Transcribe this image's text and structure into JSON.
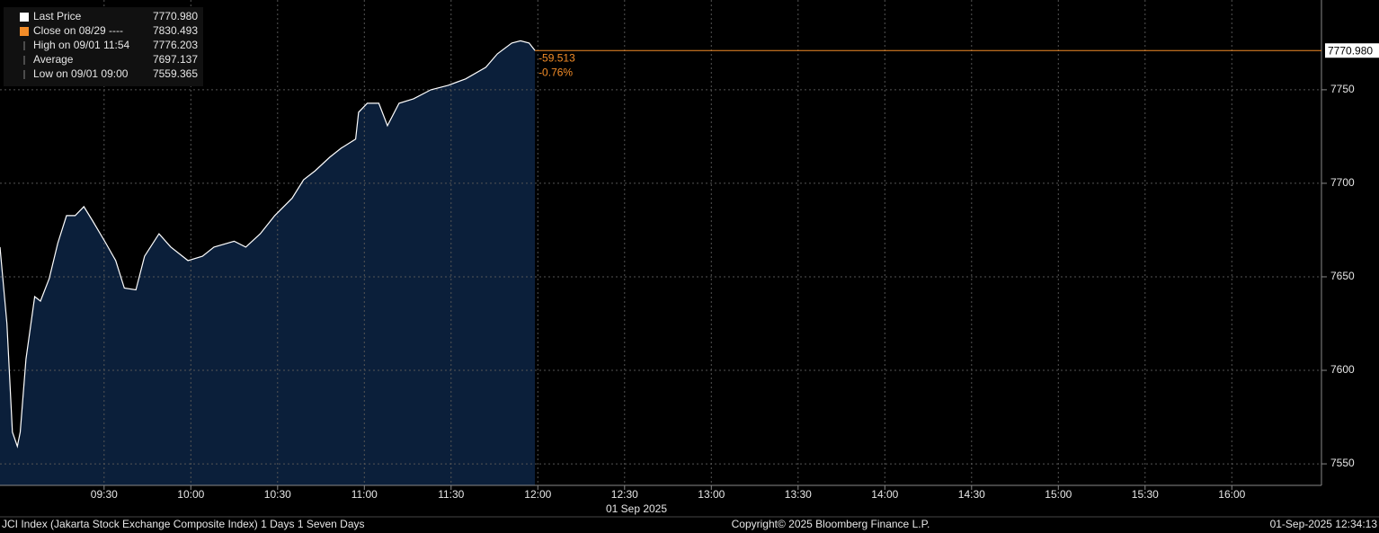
{
  "chart_data": {
    "type": "area",
    "series": [
      {
        "name": "Last Price",
        "color": "#ffffff",
        "fill": "#0b1f3a",
        "x": [
          534,
          536.4,
          538.3,
          540,
          541,
          543,
          546,
          548,
          551,
          554,
          557,
          560,
          563,
          566,
          570.6,
          574,
          577,
          581,
          584,
          589,
          593,
          599,
          604,
          608,
          615,
          619,
          624,
          629,
          635,
          639,
          643,
          648,
          652,
          657,
          658,
          661,
          665,
          668,
          672,
          677,
          683,
          689,
          695,
          702,
          706,
          711,
          714,
          717,
          719
        ],
        "values": [
          7665.9,
          7625,
          7567,
          7559.365,
          7567,
          7606,
          7639.4,
          7637,
          7649,
          7668,
          7682.7,
          7682.7,
          7687.5,
          7680,
          7668,
          7658.7,
          7644,
          7643,
          7661,
          7673,
          7666,
          7658.7,
          7661,
          7665.9,
          7669,
          7665.9,
          7673,
          7682.7,
          7692,
          7701.9,
          7706.7,
          7713.9,
          7718.8,
          7723.6,
          7738,
          7742.8,
          7742.8,
          7730.8,
          7742.8,
          7745.2,
          7750,
          7752.4,
          7755.8,
          7762,
          7769.2,
          7775,
          7776.203,
          7775,
          7770.98
        ]
      }
    ],
    "legend": [
      {
        "name": "Last Price",
        "value": "7770.980",
        "color": "#ffffff"
      },
      {
        "name": "Close on 08/29 ----",
        "value": "7830.493",
        "color": "#f28c28"
      },
      {
        "name": "High on 09/01 11:54",
        "value": "7776.203"
      },
      {
        "name": "Average",
        "value": "7697.137"
      },
      {
        "name": "Low on 09/01 09:00",
        "value": "7559.365"
      }
    ],
    "last_price": {
      "value": 7770.98,
      "label": "7770.980"
    },
    "last_price_color": "#f28c28",
    "change": -59.513,
    "change_percent": {
      "value": -0.76,
      "label": "-0.76%"
    },
    "xlim": [
      534,
      991
    ],
    "ylim": [
      7538.5,
      7798
    ],
    "yticks": [
      7550,
      7600,
      7650,
      7700,
      7750
    ],
    "xticks": [
      {
        "value": 570,
        "label": "09:30"
      },
      {
        "value": 600,
        "label": "10:00"
      },
      {
        "value": 630,
        "label": "10:30"
      },
      {
        "value": 660,
        "label": "11:00"
      },
      {
        "value": 690,
        "label": "11:30"
      },
      {
        "value": 720,
        "label": "12:00"
      },
      {
        "value": 750,
        "label": "12:30"
      },
      {
        "value": 780,
        "label": "13:00"
      },
      {
        "value": 810,
        "label": "13:30"
      },
      {
        "value": 840,
        "label": "14:00"
      },
      {
        "value": 870,
        "label": "14:30"
      },
      {
        "value": 900,
        "label": "15:00"
      },
      {
        "value": 930,
        "label": "15:30"
      },
      {
        "value": 960,
        "label": "16:00"
      }
    ],
    "date_label": "01 Sep 2025",
    "grid": true,
    "footer": {
      "left": "JCI Index (Jakarta Stock Exchange Composite Index) 1 Days 1 Seven Days",
      "center": "Copyright© 2025 Bloomberg Finance L.P.",
      "right": "01-Sep-2025 12:34:13"
    }
  }
}
